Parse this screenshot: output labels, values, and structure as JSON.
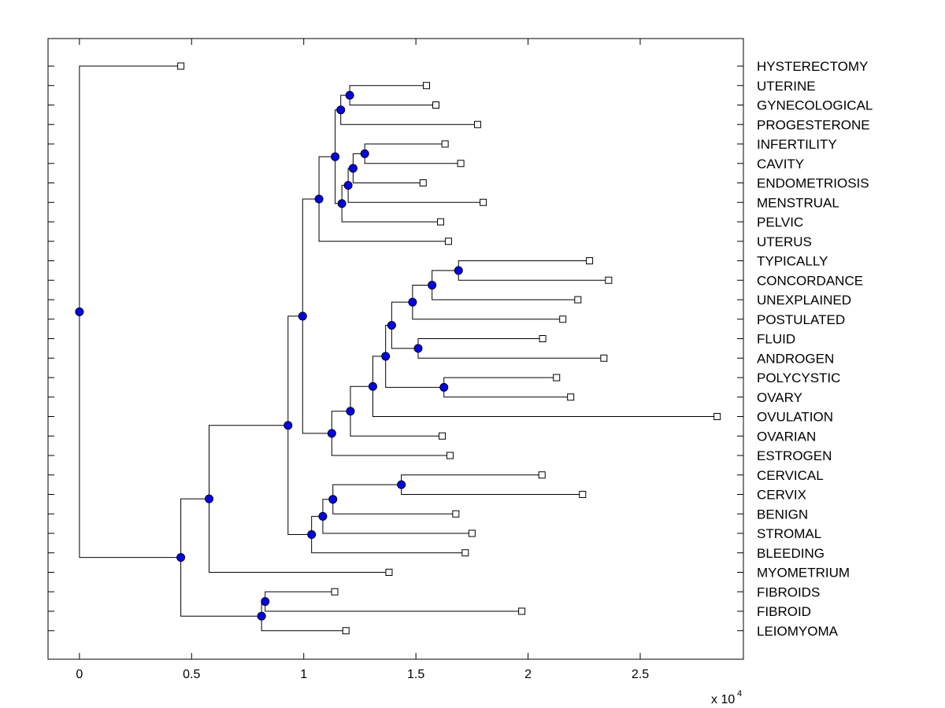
{
  "chart_data": {
    "type": "dendrogram",
    "title": "",
    "xlabel": "",
    "ylabel": "",
    "x_multiplier_label": "x 10",
    "x_multiplier_exponent": "4",
    "xlim": [
      -0.14,
      2.96
    ],
    "xticks": [
      0,
      0.5,
      1,
      1.5,
      2,
      2.5
    ],
    "xtick_labels": [
      "0",
      "0.5",
      "1",
      "1.5",
      "2",
      "2.5"
    ],
    "grid": false,
    "colors": {
      "node": "#0000ff",
      "line": "#000000",
      "leaf": "#ffffff"
    },
    "leaves": [
      {
        "label": "HYSTERECTOMY",
        "x": 0.452
      },
      {
        "label": "UTERINE",
        "x": 1.547
      },
      {
        "label": "GYNECOLOGICAL",
        "x": 1.589
      },
      {
        "label": "PROGESTERONE",
        "x": 1.775
      },
      {
        "label": "INFERTILITY",
        "x": 1.63
      },
      {
        "label": "CAVITY",
        "x": 1.7
      },
      {
        "label": "ENDOMETRIOSIS",
        "x": 1.532
      },
      {
        "label": "MENSTRUAL",
        "x": 1.8
      },
      {
        "label": "PELVIC",
        "x": 1.61
      },
      {
        "label": "UTERUS",
        "x": 1.645
      },
      {
        "label": "TYPICALLY",
        "x": 2.274
      },
      {
        "label": "CONCORDANCE",
        "x": 2.359
      },
      {
        "label": "UNEXPLAINED",
        "x": 2.222
      },
      {
        "label": "POSTULATED",
        "x": 2.155
      },
      {
        "label": "FLUID",
        "x": 2.065
      },
      {
        "label": "ANDROGEN",
        "x": 2.338
      },
      {
        "label": "POLYCYSTIC",
        "x": 2.127
      },
      {
        "label": "OVARY",
        "x": 2.19
      },
      {
        "label": "OVULATION",
        "x": 2.843
      },
      {
        "label": "OVARIAN",
        "x": 1.617
      },
      {
        "label": "ESTROGEN",
        "x": 1.652
      },
      {
        "label": "CERVICAL",
        "x": 2.062
      },
      {
        "label": "CERVIX",
        "x": 2.243
      },
      {
        "label": "BENIGN",
        "x": 1.678
      },
      {
        "label": "STROMAL",
        "x": 1.75
      },
      {
        "label": "BLEEDING",
        "x": 1.72
      },
      {
        "label": "MYOMETRIUM",
        "x": 1.38
      },
      {
        "label": "FIBROIDS",
        "x": 1.138
      },
      {
        "label": "FIBROID",
        "x": 1.972
      },
      {
        "label": "LEIOMYOMA",
        "x": 1.188
      }
    ],
    "merges": [
      {
        "id": "m1",
        "children": [
          "UTERINE",
          "GYNECOLOGICAL"
        ],
        "x": 1.205
      },
      {
        "id": "m2",
        "children": [
          "m1",
          "PROGESTERONE"
        ],
        "x": 1.165
      },
      {
        "id": "m3",
        "children": [
          "INFERTILITY",
          "CAVITY"
        ],
        "x": 1.272
      },
      {
        "id": "m4",
        "children": [
          "m3",
          "ENDOMETRIOSIS"
        ],
        "x": 1.22
      },
      {
        "id": "m5",
        "children": [
          "m4",
          "MENSTRUAL"
        ],
        "x": 1.198
      },
      {
        "id": "m6",
        "children": [
          "m5",
          "PELVIC"
        ],
        "x": 1.17
      },
      {
        "id": "m7",
        "children": [
          "m2",
          "m6"
        ],
        "x": 1.14
      },
      {
        "id": "m8",
        "children": [
          "m7",
          "UTERUS"
        ],
        "x": 1.068
      },
      {
        "id": "m9",
        "children": [
          "TYPICALLY",
          "CONCORDANCE"
        ],
        "x": 1.69
      },
      {
        "id": "m10",
        "children": [
          "m9",
          "UNEXPLAINED"
        ],
        "x": 1.572
      },
      {
        "id": "m11",
        "children": [
          "m10",
          "POSTULATED"
        ],
        "x": 1.485
      },
      {
        "id": "m12",
        "children": [
          "FLUID",
          "ANDROGEN"
        ],
        "x": 1.51
      },
      {
        "id": "m13",
        "children": [
          "m11",
          "m12"
        ],
        "x": 1.392
      },
      {
        "id": "m14",
        "children": [
          "POLYCYSTIC",
          "OVARY"
        ],
        "x": 1.625
      },
      {
        "id": "m15",
        "children": [
          "m13",
          "m14"
        ],
        "x": 1.365
      },
      {
        "id": "m16",
        "children": [
          "m15",
          "OVULATION"
        ],
        "x": 1.308
      },
      {
        "id": "m17",
        "children": [
          "m16",
          "OVARIAN"
        ],
        "x": 1.208
      },
      {
        "id": "m18",
        "children": [
          "m17",
          "ESTROGEN"
        ],
        "x": 1.125
      },
      {
        "id": "m19",
        "children": [
          "m8",
          "m18"
        ],
        "x": 0.995
      },
      {
        "id": "m20",
        "children": [
          "CERVICAL",
          "CERVIX"
        ],
        "x": 1.435
      },
      {
        "id": "m21",
        "children": [
          "m20",
          "BENIGN"
        ],
        "x": 1.13
      },
      {
        "id": "m22",
        "children": [
          "m21",
          "STROMAL"
        ],
        "x": 1.085
      },
      {
        "id": "m23",
        "children": [
          "m22",
          "BLEEDING"
        ],
        "x": 1.035
      },
      {
        "id": "m24",
        "children": [
          "m19",
          "m23"
        ],
        "x": 0.93
      },
      {
        "id": "m25",
        "children": [
          "m24",
          "MYOMETRIUM"
        ],
        "x": 0.578
      },
      {
        "id": "m26",
        "children": [
          "FIBROIDS",
          "FIBROID"
        ],
        "x": 0.828
      },
      {
        "id": "m27",
        "children": [
          "m26",
          "LEIOMYOMA"
        ],
        "x": 0.812
      },
      {
        "id": "m28",
        "children": [
          "m25",
          "m27"
        ],
        "x": 0.452
      },
      {
        "id": "m29",
        "children": [
          "HYSTERECTOMY",
          "m28"
        ],
        "x": 0.0
      }
    ]
  }
}
